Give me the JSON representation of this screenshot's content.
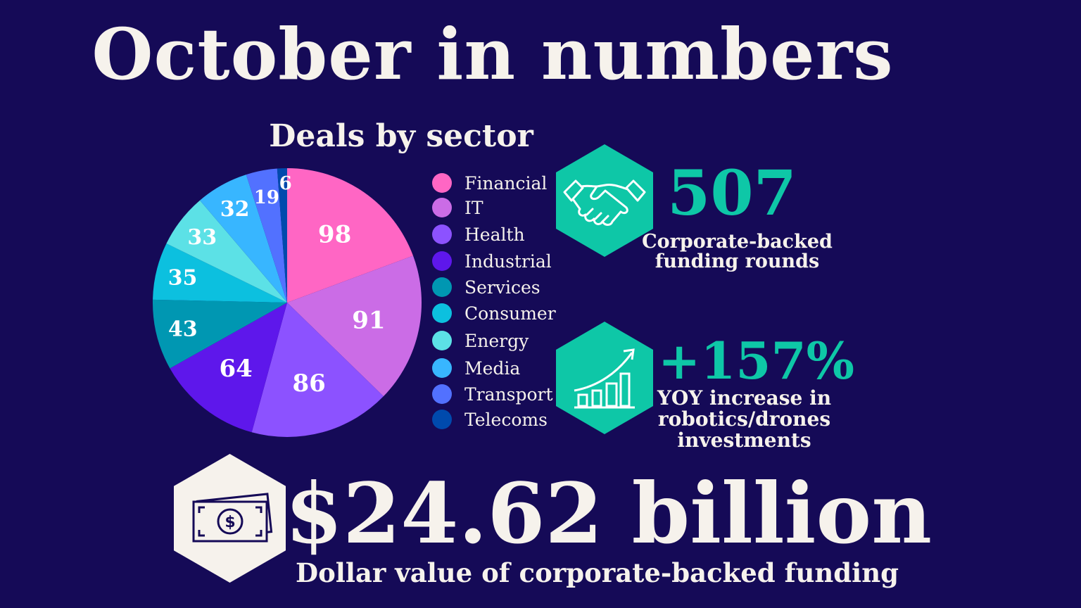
{
  "title": "October in numbers",
  "chart_data": {
    "type": "pie",
    "title": "Deals by sector",
    "categories": [
      "Financial",
      "IT",
      "Health",
      "Industrial",
      "Services",
      "Consumer",
      "Energy",
      "Media",
      "Transport",
      "Telecoms"
    ],
    "values": [
      98,
      91,
      86,
      64,
      43,
      35,
      33,
      32,
      19,
      6
    ],
    "colors": [
      "#ff66c4",
      "#cb6ce6",
      "#8c52ff",
      "#5e17eb",
      "#0097b2",
      "#0cc0df",
      "#5ce1e6",
      "#38b6ff",
      "#5271ff",
      "#004aad"
    ],
    "start": "top",
    "direction": "clockwise",
    "legend_position": "right"
  },
  "stats": {
    "rounds": {
      "value": "507",
      "caption_line1": "Corporate-backed",
      "caption_line2": "funding rounds",
      "icon": "handshake-icon"
    },
    "yoy": {
      "value": "+157%",
      "caption_line1": "YOY increase in",
      "caption_line2": "robotics/drones",
      "caption_line3": "investments",
      "icon": "growth-chart-icon"
    },
    "dollar": {
      "value": "$24.62 billion",
      "caption": "Dollar value of corporate-backed funding",
      "icon": "money-bill-icon"
    }
  },
  "colors": {
    "background": "#150a57",
    "accent": "#0ec7a7",
    "text": "#f6f2ec"
  }
}
